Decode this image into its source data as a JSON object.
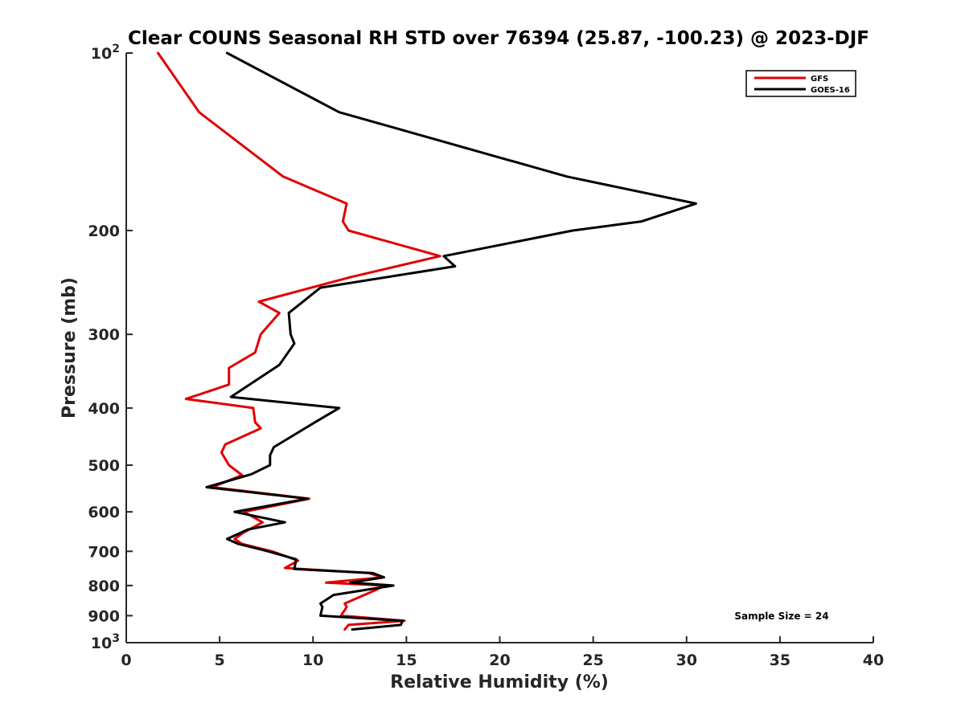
{
  "chart_data": {
    "type": "line",
    "title": "Clear COUNS Seasonal RH STD over 76394 (25.87, -100.23) @ 2023-DJF",
    "xlabel": "Relative Humidity (%)",
    "ylabel": "Pressure (mb)",
    "xlim": [
      0,
      40
    ],
    "ylim": [
      100,
      1000
    ],
    "yscale": "log",
    "y_reversed": true,
    "xticks": [
      0,
      5,
      10,
      15,
      20,
      25,
      30,
      35,
      40
    ],
    "yticks": [
      {
        "value": 100,
        "base": "10",
        "exp": "2"
      },
      {
        "value": 200,
        "label": "200"
      },
      {
        "value": 300,
        "label": "300"
      },
      {
        "value": 400,
        "label": "400"
      },
      {
        "value": 500,
        "label": "500"
      },
      {
        "value": 600,
        "label": "600"
      },
      {
        "value": 700,
        "label": "700"
      },
      {
        "value": 800,
        "label": "800"
      },
      {
        "value": 900,
        "label": "900"
      },
      {
        "value": 1000,
        "base": "10",
        "exp": "3"
      }
    ],
    "legend_position": "top-right",
    "annotation": "Sample Size = 24",
    "series": [
      {
        "name": "GFS",
        "color": "#e00000",
        "points": [
          [
            1.7,
            100
          ],
          [
            3.9,
            126
          ],
          [
            8.4,
            162
          ],
          [
            11.8,
            180
          ],
          [
            11.6,
            193
          ],
          [
            11.9,
            200
          ],
          [
            16.8,
            221
          ],
          [
            12.0,
            240
          ],
          [
            7.1,
            264
          ],
          [
            8.2,
            276
          ],
          [
            7.2,
            300
          ],
          [
            6.9,
            322
          ],
          [
            5.5,
            342
          ],
          [
            5.5,
            365
          ],
          [
            3.2,
            386
          ],
          [
            6.8,
            400
          ],
          [
            6.9,
            423
          ],
          [
            7.2,
            433
          ],
          [
            5.3,
            461
          ],
          [
            5.1,
            476
          ],
          [
            5.5,
            500
          ],
          [
            6.2,
            520
          ],
          [
            4.6,
            545
          ],
          [
            9.8,
            570
          ],
          [
            6.3,
            600
          ],
          [
            7.3,
            625
          ],
          [
            6.3,
            650
          ],
          [
            5.8,
            667
          ],
          [
            6.2,
            680
          ],
          [
            7.8,
            700
          ],
          [
            9.2,
            726
          ],
          [
            8.5,
            747
          ],
          [
            13.0,
            762
          ],
          [
            13.7,
            775
          ],
          [
            10.7,
            791
          ],
          [
            13.8,
            800
          ],
          [
            13.4,
            813
          ],
          [
            11.7,
            858
          ],
          [
            11.8,
            870
          ],
          [
            11.5,
            900
          ],
          [
            14.9,
            918
          ],
          [
            11.9,
            933
          ],
          [
            11.7,
            950
          ]
        ]
      },
      {
        "name": "GOES-16",
        "color": "#000000",
        "points": [
          [
            5.4,
            100
          ],
          [
            11.4,
            126
          ],
          [
            23.6,
            162
          ],
          [
            30.5,
            180
          ],
          [
            27.6,
            193
          ],
          [
            23.9,
            200
          ],
          [
            17.0,
            221
          ],
          [
            17.6,
            230
          ],
          [
            10.4,
            250
          ],
          [
            8.7,
            276
          ],
          [
            8.8,
            300
          ],
          [
            9.0,
            311
          ],
          [
            8.2,
            338
          ],
          [
            5.6,
            383
          ],
          [
            11.4,
            400
          ],
          [
            10.1,
            423
          ],
          [
            8.9,
            446
          ],
          [
            7.9,
            466
          ],
          [
            7.7,
            481
          ],
          [
            7.7,
            500
          ],
          [
            6.7,
            518
          ],
          [
            4.3,
            545
          ],
          [
            9.7,
            570
          ],
          [
            5.8,
            600
          ],
          [
            8.5,
            625
          ],
          [
            6.5,
            643
          ],
          [
            5.4,
            667
          ],
          [
            6.0,
            680
          ],
          [
            7.6,
            700
          ],
          [
            9.1,
            722
          ],
          [
            9.0,
            750
          ],
          [
            13.2,
            762
          ],
          [
            13.8,
            775
          ],
          [
            12.0,
            791
          ],
          [
            14.3,
            800
          ],
          [
            11.1,
            830
          ],
          [
            10.4,
            858
          ],
          [
            10.5,
            870
          ],
          [
            10.4,
            900
          ],
          [
            14.8,
            918
          ],
          [
            14.7,
            933
          ],
          [
            12.1,
            950
          ]
        ]
      }
    ]
  }
}
